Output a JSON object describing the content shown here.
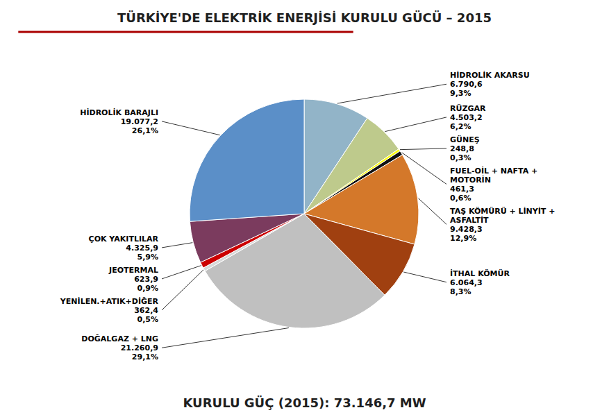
{
  "chart_data": {
    "type": "pie",
    "title": "TÜRKİYE'DE ELEKTRİK ENERJİSİ KURULU GÜCÜ – 2015",
    "subtitle": "KURULU GÜÇ (2015): 73.146,7 MW",
    "categories": [
      "HİDROLİK AKARSU",
      "RÜZGAR",
      "GÜNEŞ",
      "FUEL-OİL + NAFTA +\nMOTORİN",
      "TAŞ KÖMÜRÜ + LİNYİT +\nASFALTİT",
      "İTHAL KÖMÜR",
      "DOĞALGAZ + LNG",
      "YENİLEN.+ATIK+DİĞER",
      "JEOTERMAL",
      "ÇOK YAKITLILAR",
      "HİDROLİK BARAJLI"
    ],
    "values": [
      6790.6,
      4503.2,
      248.8,
      461.3,
      9428.3,
      6064.3,
      21260.9,
      362.4,
      623.9,
      4325.9,
      19077.2
    ],
    "value_labels": [
      "6.790,6",
      "4.503,2",
      "248,8",
      "461,3",
      "9.428,3",
      "6.064,3",
      "21.260,9",
      "362,4",
      "623,9",
      "4.325,9",
      "19.077,2"
    ],
    "percentages": [
      9.3,
      6.2,
      0.3,
      0.6,
      12.9,
      8.3,
      29.1,
      0.5,
      0.9,
      5.9,
      26.1
    ],
    "percentage_labels": [
      "9,3%",
      "6,2%",
      "0,3%",
      "0,6%",
      "12,9%",
      "8,3%",
      "29,1%",
      "0,5%",
      "0,9%",
      "5,9%",
      "26,1%"
    ],
    "colors": [
      "#92B4C8",
      "#BECA8C",
      "#FFFF00",
      "#111111",
      "#D4782A",
      "#A04010",
      "#C0C0C0",
      "#D8D8D8",
      "#CC0000",
      "#7B3B5E",
      "#5B8FC8"
    ],
    "data_labels": true
  }
}
